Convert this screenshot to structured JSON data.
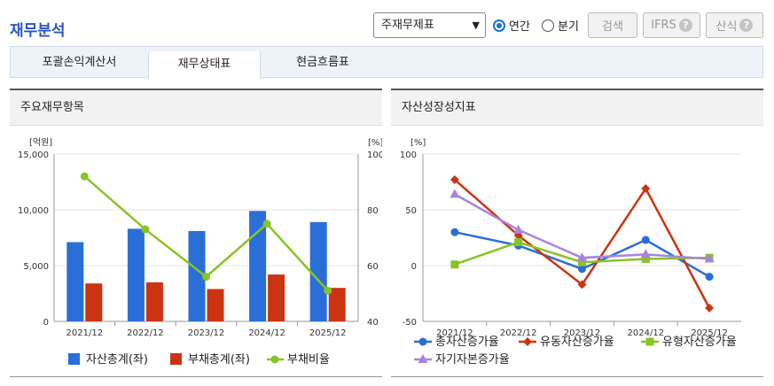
{
  "header": {
    "title": "재무분석",
    "statement_select": "주재무제표",
    "period_options": [
      "연간",
      "분기"
    ],
    "period_selected": "연간",
    "search_label": "검색",
    "ifrs_label": "IFRS",
    "formula_label": "산식",
    "help_glyph": "?"
  },
  "tabs": [
    {
      "label": "포괄손익계산서",
      "active": false
    },
    {
      "label": "재무상태표",
      "active": true
    },
    {
      "label": "현금흐름표",
      "active": false
    }
  ],
  "left_panel": {
    "title": "주요재무항목"
  },
  "right_panel": {
    "title": "자산성장성지표"
  },
  "colors": {
    "accent": "#2a55c7",
    "bar_assets": "#2a6ed8",
    "bar_liabilities": "#cc3311",
    "line_ratio": "#88c425",
    "total_asset_growth": "#2a6ed8",
    "current_asset_growth": "#cc3311",
    "tangible_asset_growth": "#88c425",
    "equity_growth": "#a884e0"
  },
  "chart_data": [
    {
      "type": "bar",
      "categories": [
        "2021/12",
        "2022/12",
        "2023/12",
        "2024/12",
        "2025/12"
      ],
      "left_unit": "[억원]",
      "right_unit": "[%]",
      "left_ticks": [
        "0",
        "5,000",
        "10,000",
        "15,000"
      ],
      "right_ticks": [
        "40",
        "60",
        "80",
        "100"
      ],
      "ylim": [
        0,
        15000
      ],
      "ylim_right": [
        40,
        100
      ],
      "series": [
        {
          "name": "자산총계(좌)",
          "type": "bar",
          "axis": "left",
          "values": [
            7100,
            8300,
            8100,
            9900,
            8900
          ]
        },
        {
          "name": "부채총계(좌)",
          "type": "bar",
          "axis": "left",
          "values": [
            3400,
            3500,
            2900,
            4200,
            3000
          ]
        },
        {
          "name": "부채비율",
          "type": "line",
          "axis": "right",
          "values": [
            92,
            73,
            56,
            75,
            51
          ]
        }
      ],
      "legend_position": "bottom"
    },
    {
      "type": "line",
      "categories": [
        "2021/12",
        "2022/12",
        "2023/12",
        "2024/12",
        "2025/12"
      ],
      "y_unit": "[%]",
      "y_ticks": [
        "-50",
        "0",
        "50",
        "100"
      ],
      "ylim": [
        -50,
        100
      ],
      "series": [
        {
          "name": "총자산증가율",
          "marker": "circle",
          "values": [
            30,
            18,
            -3,
            23,
            -10
          ]
        },
        {
          "name": "유동자산증가율",
          "marker": "diamond",
          "values": [
            77,
            27,
            -17,
            69,
            -38
          ]
        },
        {
          "name": "유형자산증가율",
          "marker": "square",
          "values": [
            1,
            21,
            3,
            6,
            7
          ]
        },
        {
          "name": "자기자본증가율",
          "marker": "triangle",
          "values": [
            64,
            32,
            7,
            10,
            6
          ]
        }
      ],
      "legend_position": "bottom"
    }
  ]
}
